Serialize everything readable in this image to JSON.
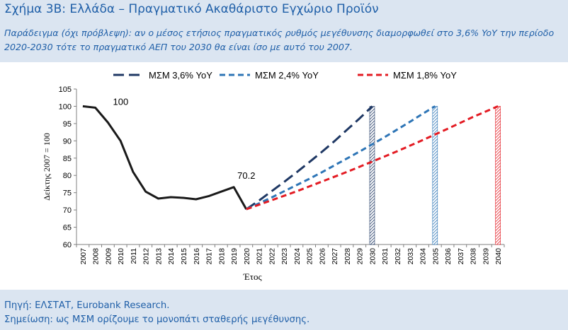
{
  "header": {
    "title": "Σχήμα 3B: Ελλάδα – Πραγματικό Ακαθάριστο Εγχώριο Προϊόν",
    "subtitle": "Παράδειγμα (όχι πρόβλεψη): αν ο μέσος ετήσιος πραγματικός ρυθμός μεγέθυνσης διαμορφωθεί στο 3,6% YoY την περίοδο 2020-2030 τότε το πραγματικό ΑΕΠ του 2030 θα είναι ίσο με αυτό του 2007."
  },
  "footer": {
    "source": "Πηγή: ΕΛΣΤΑΤ, Eurobank Research.",
    "note": "Σημείωση: ως ΜΣΜ ορίζουμε το μονοπάτι σταθερής μεγέθυνσης."
  },
  "chart_data": {
    "type": "line",
    "xlabel": "Έτος",
    "ylabel": "Δείκτης 2007 = 100",
    "xlim": [
      2007,
      2040
    ],
    "ylim": [
      60,
      105
    ],
    "yticks": [
      60,
      65,
      70,
      75,
      80,
      85,
      90,
      95,
      100,
      105
    ],
    "xticks": [
      "2007",
      "2008",
      "2009",
      "2010",
      "2011",
      "2012",
      "2013",
      "2014",
      "2015",
      "2016",
      "2017",
      "2018",
      "2019",
      "2020",
      "2021",
      "2022",
      "2023",
      "2024",
      "2025",
      "2026",
      "2027",
      "2028",
      "2029",
      "2030",
      "2031",
      "2032",
      "2033",
      "2034",
      "2035",
      "2036",
      "2037",
      "2038",
      "2039",
      "2040"
    ],
    "grid": false,
    "legend_position": "top",
    "annotations": [
      {
        "text": "100",
        "x": 2009,
        "y": 100
      },
      {
        "text": "70.2",
        "x": 2020,
        "y": 70.2
      }
    ],
    "series": [
      {
        "name": "",
        "color": "#1a1a1a",
        "style": "solid",
        "x": [
          2007,
          2008,
          2009,
          2010,
          2011,
          2012,
          2013,
          2014,
          2015,
          2016,
          2017,
          2018,
          2019,
          2020
        ],
        "y": [
          100,
          99.6,
          95.3,
          90,
          81,
          75.3,
          73.3,
          73.7,
          73.5,
          73.1,
          74,
          75.3,
          76.6,
          70.2
        ]
      },
      {
        "name": "ΜΣΜ 3,6% YoY",
        "color": "#1f3864",
        "style": "longdash",
        "x": [
          2020,
          2021,
          2022,
          2023,
          2024,
          2025,
          2026,
          2027,
          2028,
          2029,
          2030
        ],
        "y": [
          70.2,
          72.7,
          75.4,
          78.1,
          80.9,
          83.8,
          86.8,
          89.9,
          93.2,
          96.5,
          100
        ]
      },
      {
        "name": "ΜΣΜ 2,4% YoY",
        "color": "#2e75b6",
        "style": "dash",
        "x": [
          2020,
          2021,
          2022,
          2023,
          2024,
          2025,
          2026,
          2027,
          2028,
          2029,
          2030,
          2031,
          2032,
          2033,
          2034,
          2035
        ],
        "y": [
          70.2,
          71.9,
          73.6,
          75.4,
          77.2,
          79,
          80.9,
          82.9,
          84.9,
          86.9,
          89,
          91.1,
          93.3,
          95.5,
          97.8,
          100
        ]
      },
      {
        "name": "ΜΣΜ 1,8% YoY",
        "color": "#e31b23",
        "style": "dash",
        "x": [
          2020,
          2022,
          2024,
          2026,
          2028,
          2030,
          2032,
          2034,
          2036,
          2038,
          2040
        ],
        "y": [
          70.2,
          72.8,
          75.4,
          78.2,
          81,
          84,
          87,
          90.2,
          93.5,
          96.9,
          100
        ]
      }
    ],
    "markers": [
      {
        "x": 2030,
        "color": "#1f3864"
      },
      {
        "x": 2035,
        "color": "#2e75b6"
      },
      {
        "x": 2040,
        "color": "#e31b23"
      }
    ]
  }
}
